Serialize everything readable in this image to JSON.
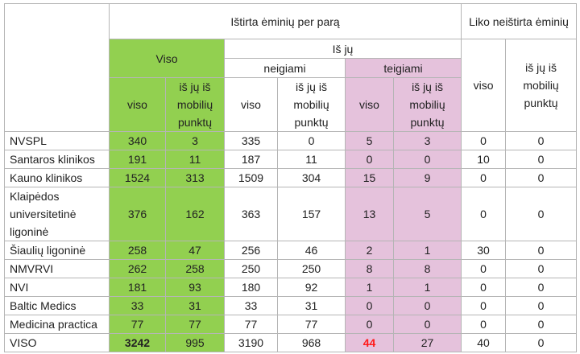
{
  "table": {
    "header": {
      "tested": "Ištirta ėminių per parą",
      "untested": "Liko neištirta ėminių",
      "total": "Viso",
      "of_which": "Iš jų",
      "negative": "neigiami",
      "positive": "teigiami",
      "columns": [
        "viso",
        "iš jų iš mobilių punktų",
        "viso",
        "iš jų iš mobilių punktų",
        "viso",
        "iš jų iš mobilių punktų",
        "viso",
        "iš jų iš mobilių punktų"
      ]
    },
    "rows": [
      {
        "label": "NVSPL",
        "values": [
          340,
          3,
          335,
          0,
          5,
          3,
          0,
          0
        ]
      },
      {
        "label": "Santaros klinikos",
        "values": [
          191,
          11,
          187,
          11,
          0,
          0,
          10,
          0
        ]
      },
      {
        "label": "Kauno klinikos",
        "values": [
          1524,
          313,
          1509,
          304,
          15,
          9,
          0,
          0
        ]
      },
      {
        "label": "Klaipėdos universitetinė ligoninė",
        "values": [
          376,
          162,
          363,
          157,
          13,
          5,
          0,
          0
        ]
      },
      {
        "label": "Šiaulių ligoninė",
        "values": [
          258,
          47,
          256,
          46,
          2,
          1,
          30,
          0
        ]
      },
      {
        "label": "NMVRVI",
        "values": [
          262,
          258,
          250,
          250,
          8,
          8,
          0,
          0
        ]
      },
      {
        "label": "NVI",
        "values": [
          181,
          93,
          180,
          92,
          1,
          1,
          0,
          0
        ]
      },
      {
        "label": "Baltic Medics",
        "values": [
          33,
          31,
          33,
          31,
          0,
          0,
          0,
          0
        ]
      },
      {
        "label": "Medicina practica",
        "values": [
          77,
          77,
          77,
          77,
          0,
          0,
          0,
          0
        ]
      },
      {
        "label": "VISO",
        "values": [
          3242,
          995,
          3190,
          968,
          44,
          27,
          40,
          0
        ]
      }
    ]
  }
}
